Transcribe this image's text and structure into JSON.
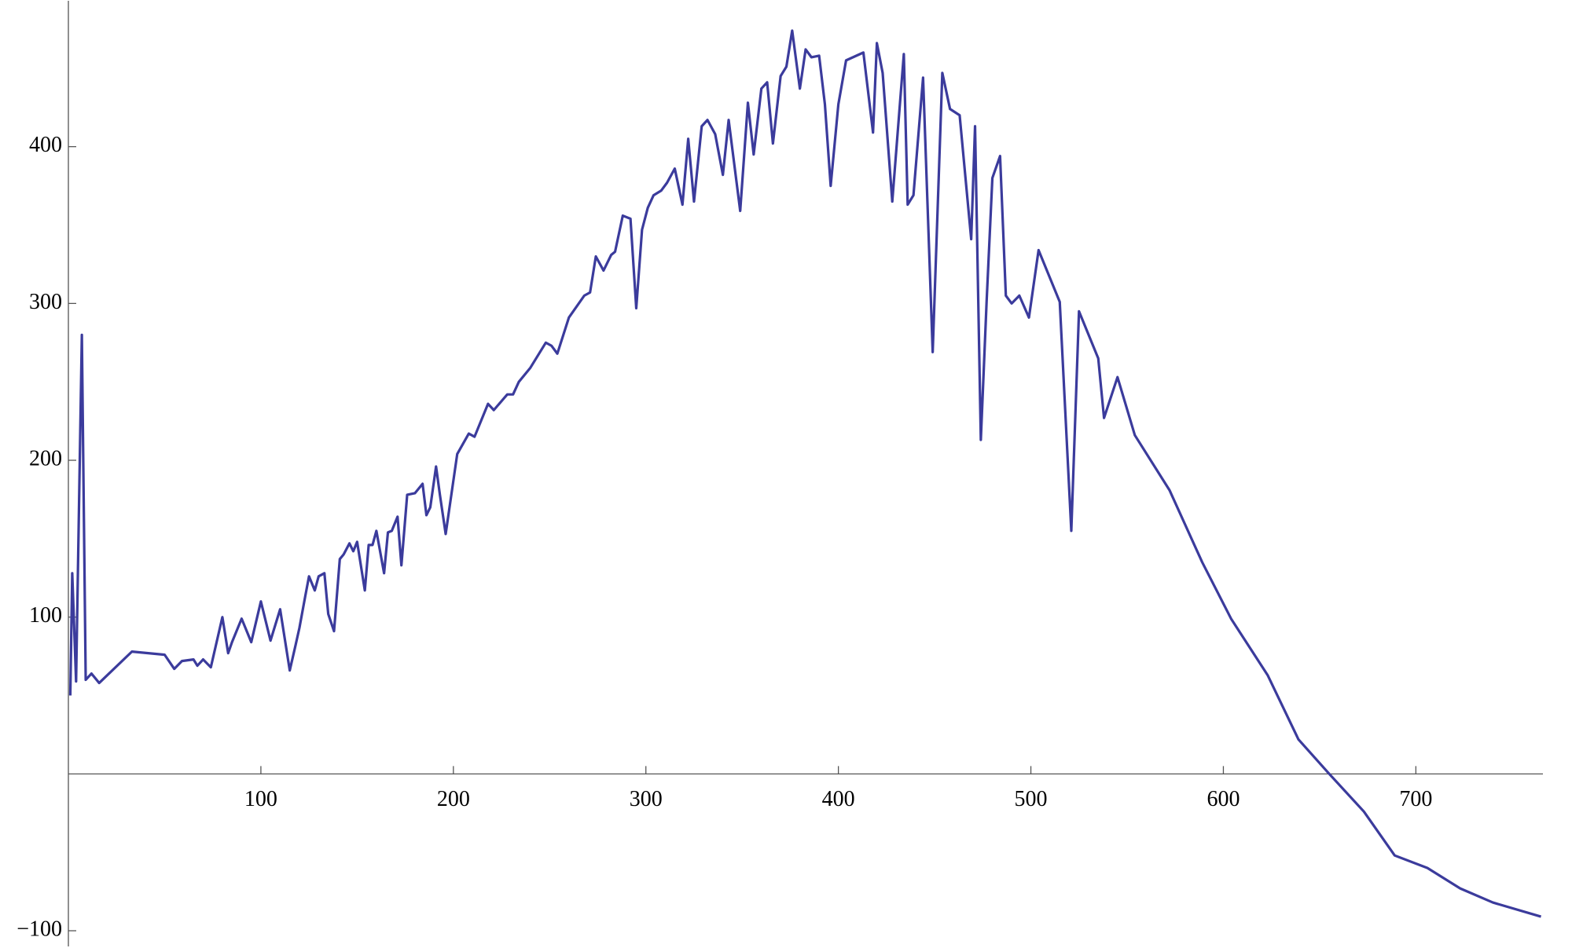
{
  "chart_data": {
    "type": "line",
    "x": [
      1,
      2,
      4,
      7,
      9,
      12,
      16,
      33,
      50,
      55,
      59,
      65,
      67,
      70,
      74,
      80,
      83,
      85,
      90,
      95,
      100,
      105,
      110,
      115,
      118,
      120,
      123,
      125,
      128,
      130,
      133,
      135,
      138,
      141,
      143,
      146,
      148,
      150,
      154,
      156,
      158,
      160,
      164,
      166,
      168,
      171,
      173,
      176,
      180,
      184,
      186,
      188,
      191,
      193,
      196,
      202,
      208,
      211,
      218,
      221,
      228,
      231,
      234,
      240,
      248,
      251,
      254,
      260,
      268,
      271,
      274,
      278,
      282,
      284,
      288,
      292,
      295,
      298,
      301,
      304,
      308,
      311,
      315,
      319,
      322,
      325,
      329,
      332,
      336,
      340,
      343,
      346,
      349,
      353,
      356,
      360,
      363,
      366,
      370,
      373,
      376,
      380,
      383,
      386,
      390,
      393,
      396,
      400,
      404,
      413,
      418,
      420,
      423,
      428,
      434,
      436,
      439,
      444,
      449,
      454,
      458,
      463,
      469,
      471,
      474,
      477,
      480,
      484,
      487,
      490,
      494,
      499,
      504,
      515,
      521,
      525,
      535,
      538,
      545,
      554,
      572,
      589,
      604,
      623,
      639,
      655,
      673,
      689,
      706,
      723,
      740,
      765
    ],
    "series": [
      {
        "color": "#3b3b9c",
        "values": [
          50,
          128,
          59,
          280,
          60,
          64,
          58,
          78,
          76,
          67,
          72,
          73,
          69,
          73,
          68,
          100,
          77,
          84,
          99,
          84,
          110,
          85,
          105,
          66,
          82,
          93,
          113,
          126,
          117,
          126,
          128,
          102,
          91,
          137,
          140,
          147,
          142,
          148,
          117,
          146,
          146,
          155,
          128,
          154,
          155,
          164,
          133,
          178,
          179,
          185,
          165,
          170,
          196,
          178,
          153,
          204,
          217,
          215,
          236,
          232,
          242,
          242,
          250,
          259,
          275,
          273,
          268,
          291,
          305,
          307,
          330,
          321,
          331,
          333,
          356,
          354,
          297,
          347,
          361,
          369,
          372,
          377,
          386,
          363,
          405,
          365,
          413,
          417,
          408,
          382,
          417,
          388,
          359,
          428,
          395,
          437,
          441,
          402,
          445,
          451,
          474,
          437,
          462,
          457,
          458,
          427,
          375,
          427,
          455,
          460,
          409,
          466,
          447,
          365,
          459,
          363,
          369,
          444,
          269,
          447,
          424,
          420,
          341,
          413,
          213,
          301,
          380,
          394,
          305,
          300,
          305,
          291,
          334,
          301,
          155,
          295,
          265,
          227,
          253,
          216,
          181,
          135,
          99,
          63,
          22,
          0,
          -24,
          -52,
          -60,
          -73,
          -82,
          -91
        ]
      }
    ],
    "xlim": [
      0,
      766
    ],
    "ylim": [
      -110,
      493
    ],
    "xticks": [
      100,
      200,
      300,
      400,
      500,
      600,
      700
    ],
    "yticks": [
      {
        "value": -100,
        "label": "−100"
      },
      100,
      200,
      300,
      400
    ]
  }
}
